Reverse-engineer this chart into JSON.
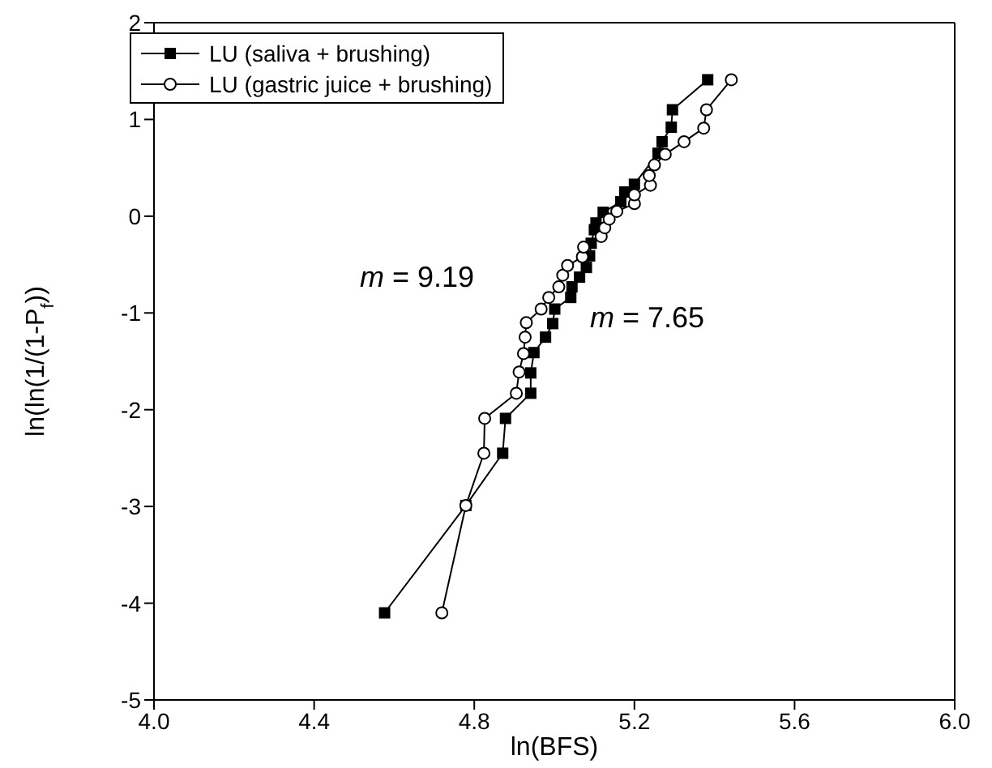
{
  "chart_data": {
    "type": "line",
    "xlabel": "ln(BFS)",
    "ylabel": "ln(ln(1/(1-P$_{f}$))",
    "xlim": [
      4.0,
      6.0
    ],
    "xticks": [
      {
        "value": 4,
        "label": "4.0"
      },
      4.4,
      4.8,
      5.2,
      5.6,
      {
        "value": 6,
        "label": "6.0"
      }
    ],
    "ylim": [
      -5,
      2
    ],
    "yticks": [
      -5,
      -4,
      -3,
      -2,
      -1,
      0,
      1,
      2
    ],
    "grid": false,
    "legend": "top left",
    "line_style": "solid",
    "annotations": [
      "m = 9.19",
      "m = 7.65"
    ],
    "series": [
      {
        "name": "LU (saliva + brushing)",
        "color": "#000000",
        "marker": "square",
        "x": [
          4.576,
          4.779,
          4.871,
          4.878,
          4.941,
          4.941,
          4.949,
          4.978,
          4.996,
          5.001,
          5.041,
          5.044,
          5.063,
          5.08,
          5.088,
          5.092,
          5.1,
          5.104,
          5.122,
          5.166,
          5.176,
          5.2,
          5.259,
          5.269,
          5.292,
          5.295,
          5.383
        ],
        "values": [
          -4.1,
          -2.99,
          -2.45,
          -2.09,
          -1.83,
          -1.62,
          -1.41,
          -1.25,
          -1.11,
          -0.96,
          -0.84,
          -0.73,
          -0.63,
          -0.53,
          -0.41,
          -0.28,
          -0.14,
          -0.07,
          0.04,
          0.15,
          0.25,
          0.33,
          0.65,
          0.77,
          0.92,
          1.1,
          1.41
        ]
      },
      {
        "name": "LU (gastric juice + brushing)",
        "color": "#000000",
        "marker": "circle",
        "x": [
          4.719,
          4.779,
          4.824,
          4.826,
          4.905,
          4.912,
          4.923,
          4.927,
          4.93,
          4.967,
          4.986,
          5.011,
          5.021,
          5.033,
          5.07,
          5.073,
          5.117,
          5.126,
          5.137,
          5.156,
          5.2,
          5.2,
          5.24,
          5.237,
          5.25,
          5.277,
          5.324,
          5.373,
          5.38,
          5.442
        ],
        "values": [
          -4.1,
          -2.99,
          -2.45,
          -2.09,
          -1.83,
          -1.61,
          -1.42,
          -1.25,
          -1.1,
          -0.96,
          -0.84,
          -0.73,
          -0.61,
          -0.51,
          -0.42,
          -0.32,
          -0.21,
          -0.12,
          -0.03,
          0.05,
          0.13,
          0.22,
          0.32,
          0.42,
          0.53,
          0.64,
          0.77,
          0.91,
          1.1,
          1.41
        ]
      }
    ]
  }
}
